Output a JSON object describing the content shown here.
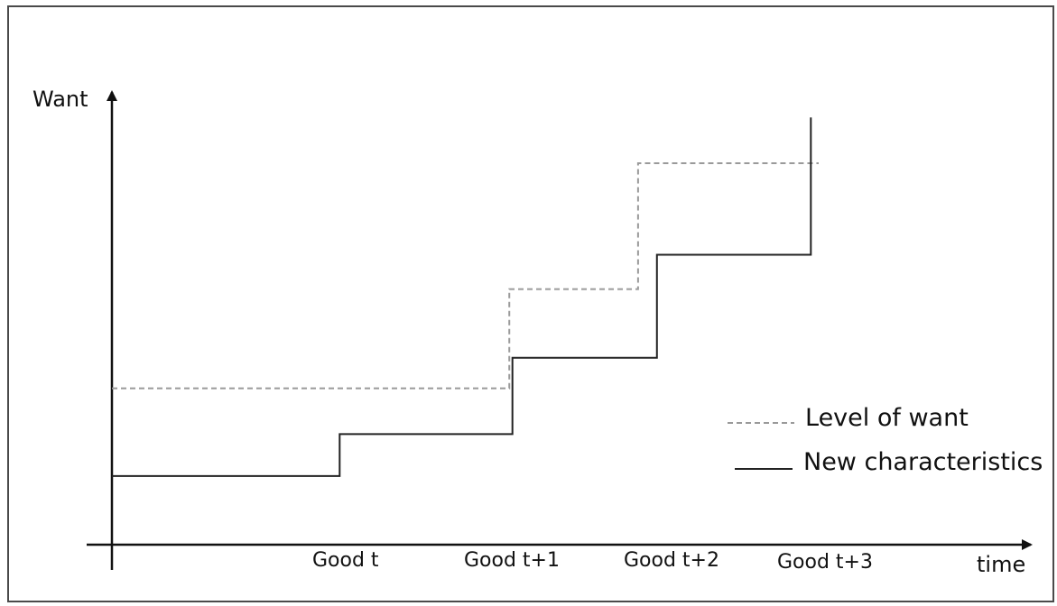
{
  "chart_data": {
    "type": "line",
    "xlabel": "time",
    "ylabel": "Want",
    "x_ticks": [
      "Good t",
      "Good t+1",
      "Good t+2",
      "Good t+3"
    ],
    "grid": false,
    "legend_placement": "right",
    "series": [
      {
        "name": "Level of want",
        "style": "dashed",
        "color": "#9a9a9a",
        "points": [
          [
            0.0,
            0.41
          ],
          [
            2.53,
            0.41
          ],
          [
            2.53,
            0.67
          ],
          [
            3.35,
            0.67
          ],
          [
            3.35,
            1.0
          ],
          [
            4.5,
            1.0
          ]
        ]
      },
      {
        "name": "New characteristics",
        "style": "solid",
        "color": "#222222",
        "points": [
          [
            0.0,
            0.18
          ],
          [
            1.45,
            0.18
          ],
          [
            1.45,
            0.29
          ],
          [
            2.55,
            0.29
          ],
          [
            2.55,
            0.49
          ],
          [
            3.47,
            0.49
          ],
          [
            3.47,
            0.76
          ],
          [
            4.45,
            0.76
          ],
          [
            4.45,
            1.12
          ]
        ]
      }
    ]
  }
}
